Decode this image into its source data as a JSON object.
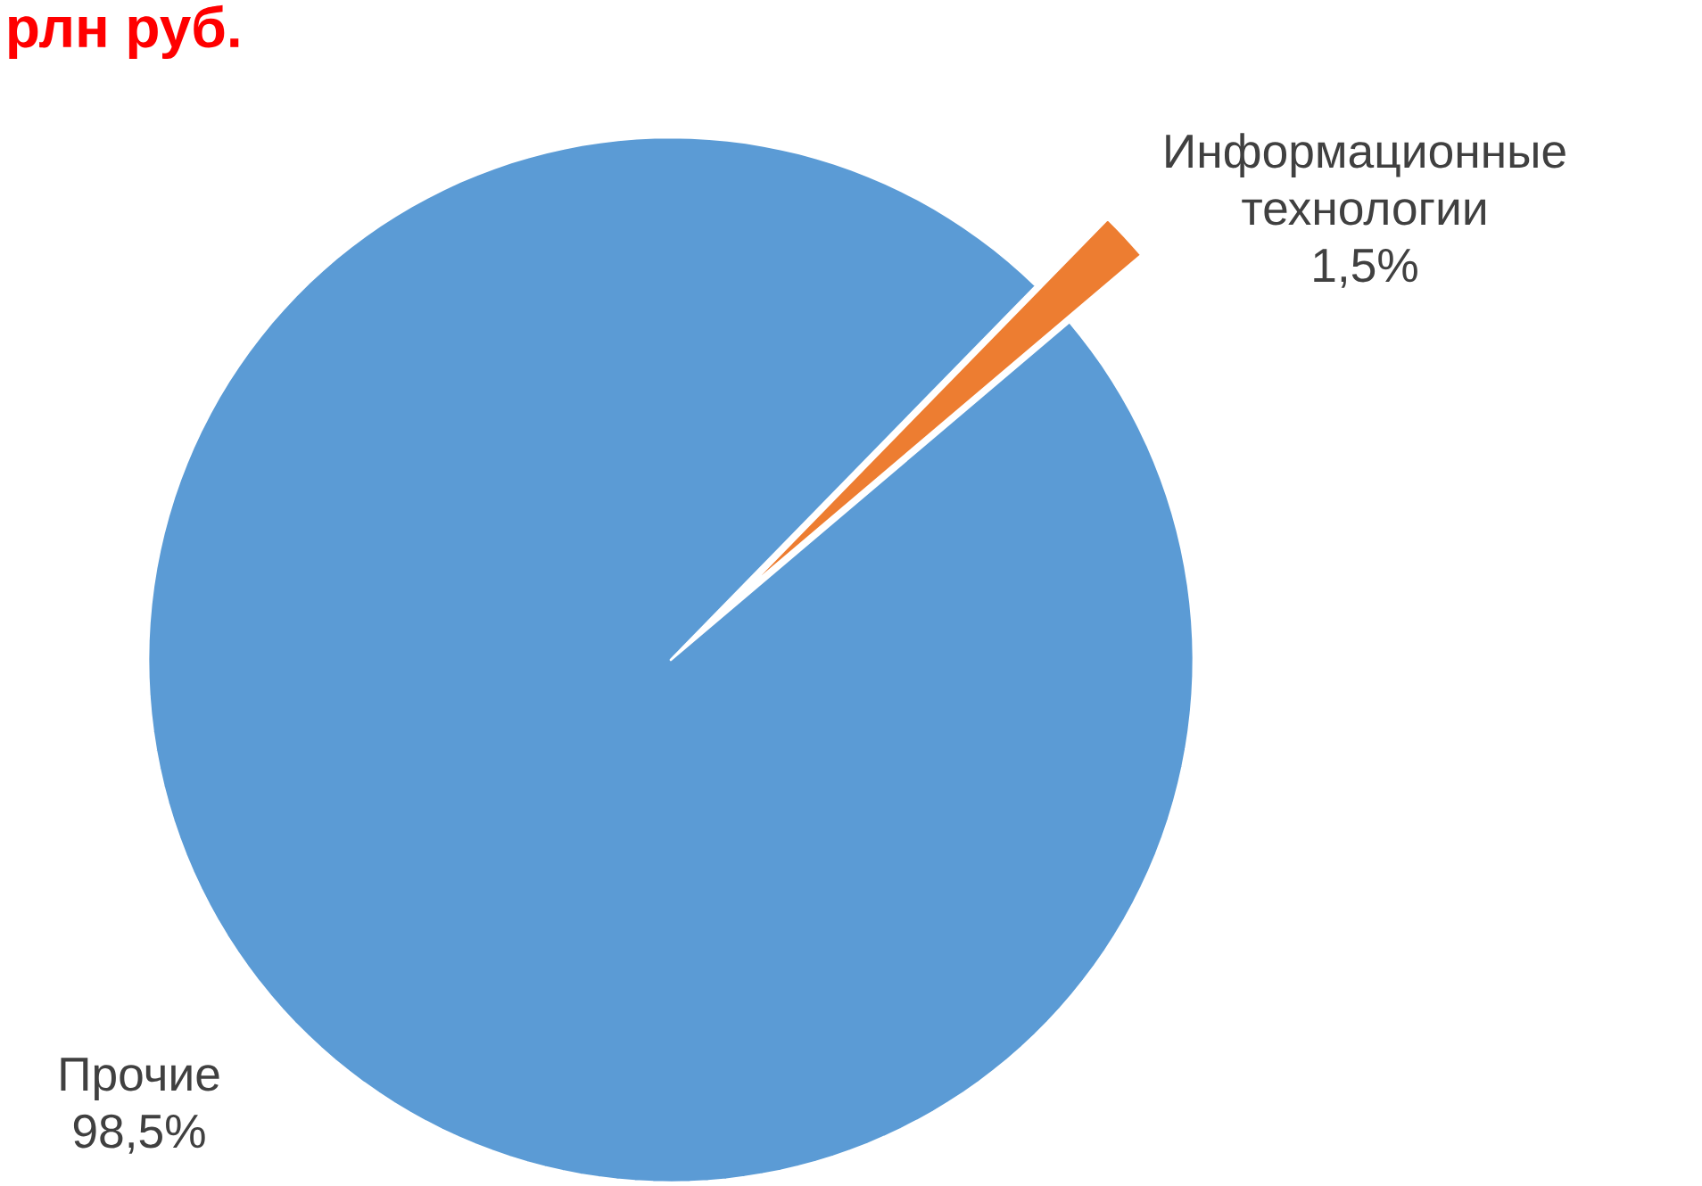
{
  "chart_data": {
    "type": "pie",
    "title": "рлн руб.",
    "categories": [
      "Информационные технологии",
      "Прочие"
    ],
    "values": [
      1.5,
      98.5
    ],
    "colors": [
      "#ed7d31",
      "#5b9bd5"
    ],
    "value_labels": [
      "1,5%",
      "98,5%"
    ]
  }
}
